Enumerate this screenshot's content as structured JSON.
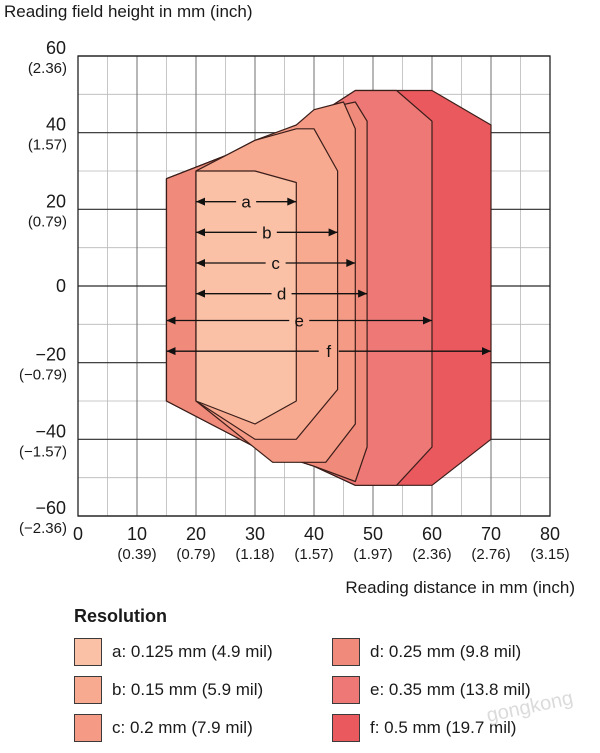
{
  "chart_data": {
    "type": "area",
    "ylabel": "Reading field height in mm (inch)",
    "xlabel": "Reading distance in mm (inch)",
    "xlim": [
      0,
      80
    ],
    "ylim": [
      -60,
      60
    ],
    "grid": true,
    "x_ticks": [
      {
        "value": 0,
        "label": "0",
        "sublabel": ""
      },
      {
        "value": 10,
        "label": "10",
        "sublabel": "(0.39)"
      },
      {
        "value": 20,
        "label": "20",
        "sublabel": "(0.79)"
      },
      {
        "value": 30,
        "label": "30",
        "sublabel": "(1.18)"
      },
      {
        "value": 40,
        "label": "40",
        "sublabel": "(1.57)"
      },
      {
        "value": 50,
        "label": "50",
        "sublabel": "(1.97)"
      },
      {
        "value": 60,
        "label": "60",
        "sublabel": "(2.36)"
      },
      {
        "value": 70,
        "label": "70",
        "sublabel": "(2.76)"
      },
      {
        "value": 80,
        "label": "80",
        "sublabel": "(3.15)"
      }
    ],
    "y_ticks": [
      {
        "value": 60,
        "label": "60",
        "sublabel": "(2.36)"
      },
      {
        "value": 40,
        "label": "40",
        "sublabel": "(1.57)"
      },
      {
        "value": 20,
        "label": "20",
        "sublabel": "(0.79)"
      },
      {
        "value": 0,
        "label": "0",
        "sublabel": ""
      },
      {
        "value": -20,
        "label": "−20",
        "sublabel": "(−0.79)"
      },
      {
        "value": -40,
        "label": "−40",
        "sublabel": "(−1.57)"
      },
      {
        "value": -60,
        "label": "−60",
        "sublabel": "(−2.36)"
      }
    ],
    "series": [
      {
        "name": "a",
        "color": "#fbc1a6",
        "arrow_from": 20,
        "arrow_to": 37,
        "arrow_y": 22,
        "points": [
          [
            20,
            30
          ],
          [
            30,
            30
          ],
          [
            37,
            27
          ],
          [
            37,
            -30
          ],
          [
            30,
            -36
          ],
          [
            20,
            -30
          ]
        ]
      },
      {
        "name": "b",
        "color": "#f8aa90",
        "arrow_from": 20,
        "arrow_to": 44,
        "arrow_y": 14,
        "points": [
          [
            20,
            30
          ],
          [
            30,
            38
          ],
          [
            37,
            41
          ],
          [
            40,
            41
          ],
          [
            44,
            30
          ],
          [
            44,
            -27
          ],
          [
            37,
            -40
          ],
          [
            30,
            -40
          ],
          [
            20,
            -30
          ]
        ]
      },
      {
        "name": "c",
        "color": "#f59a84",
        "arrow_from": 20,
        "arrow_to": 47,
        "arrow_y": 6,
        "points": [
          [
            20,
            30
          ],
          [
            30,
            38
          ],
          [
            37,
            42
          ],
          [
            40,
            46
          ],
          [
            45,
            48
          ],
          [
            47,
            41
          ],
          [
            47,
            -36
          ],
          [
            42,
            -46
          ],
          [
            33,
            -46
          ],
          [
            20,
            -30
          ]
        ]
      },
      {
        "name": "d",
        "color": "#f08a7a",
        "arrow_from": 20,
        "arrow_to": 49,
        "arrow_y": -2,
        "points": [
          [
            15,
            28
          ],
          [
            30,
            37
          ],
          [
            40,
            44
          ],
          [
            44,
            47
          ],
          [
            47,
            48
          ],
          [
            49,
            43
          ],
          [
            49,
            -42
          ],
          [
            47,
            -51
          ],
          [
            40,
            -47
          ],
          [
            30,
            -42
          ],
          [
            15,
            -30
          ]
        ]
      },
      {
        "name": "e",
        "color": "#ed7876",
        "arrow_from": 15,
        "arrow_to": 60,
        "arrow_y": -9,
        "points": [
          [
            15,
            28
          ],
          [
            30,
            37
          ],
          [
            40,
            44
          ],
          [
            47,
            51
          ],
          [
            54,
            51
          ],
          [
            60,
            43
          ],
          [
            60,
            -42
          ],
          [
            54,
            -52
          ],
          [
            47,
            -52
          ],
          [
            40,
            -47
          ],
          [
            30,
            -42
          ],
          [
            15,
            -30
          ]
        ]
      },
      {
        "name": "f",
        "color": "#e9595e",
        "arrow_from": 15,
        "arrow_to": 70,
        "arrow_y": -17,
        "points": [
          [
            15,
            28
          ],
          [
            30,
            37
          ],
          [
            40,
            44
          ],
          [
            47,
            51
          ],
          [
            60,
            51
          ],
          [
            70,
            42
          ],
          [
            70,
            -40
          ],
          [
            60,
            -52
          ],
          [
            47,
            -52
          ],
          [
            40,
            -47
          ],
          [
            30,
            -42
          ],
          [
            15,
            -30
          ]
        ]
      }
    ]
  },
  "legend": {
    "title": "Resolution",
    "items": [
      {
        "label": "a: 0.125 mm (4.9 mil)",
        "color": "#fbc1a6"
      },
      {
        "label": "d: 0.25 mm (9.8 mil)",
        "color": "#f08a7a"
      },
      {
        "label": "b: 0.15 mm (5.9 mil)",
        "color": "#f8aa90"
      },
      {
        "label": "e: 0.35 mm (13.8 mil)",
        "color": "#ed7876"
      },
      {
        "label": "c: 0.2 mm (7.9 mil)",
        "color": "#f59a84"
      },
      {
        "label": "f: 0.5 mm (19.7 mil)",
        "color": "#e9595e"
      }
    ]
  },
  "watermark": "gongkong"
}
